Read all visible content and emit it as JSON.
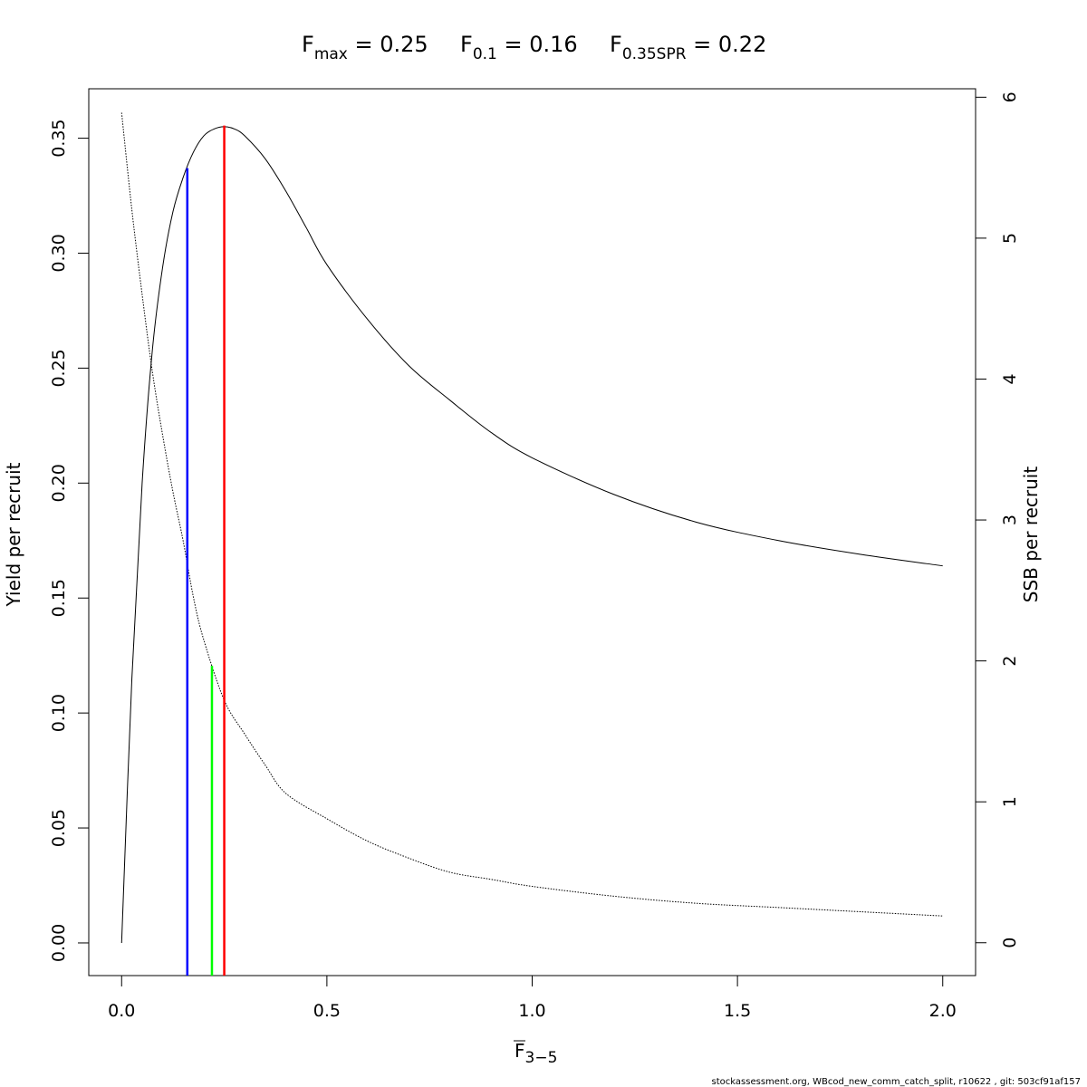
{
  "title": {
    "fmax": {
      "base": "F",
      "sub": "max",
      "text": " = 0.25"
    },
    "f01": {
      "base": "F",
      "sub": "0.1",
      "text": " = 0.16"
    },
    "fspr": {
      "base": "F",
      "sub": "0.35SPR",
      "text": " = 0.22"
    }
  },
  "footer": "stockassessment.org, WBcod_new_comm_catch_split, r10622 , git: 503cf91af157",
  "chart_data": {
    "type": "line",
    "xlabel": {
      "base": "F",
      "sub": "3−5"
    },
    "ylabel": "Yield per recruit",
    "y2label": "SSB per recruit",
    "xlim": [
      -0.08,
      2.08
    ],
    "ylim": [
      -0.0142,
      0.3715
    ],
    "y2lim": [
      -0.233,
      6.06
    ],
    "x_ticks": [
      0.0,
      0.5,
      1.0,
      1.5,
      2.0
    ],
    "x_tick_labels": [
      "0.0",
      "0.5",
      "1.0",
      "1.5",
      "2.0"
    ],
    "y_ticks": [
      0.0,
      0.05,
      0.1,
      0.15,
      0.2,
      0.25,
      0.3,
      0.35
    ],
    "y_tick_labels": [
      "0.00",
      "0.05",
      "0.10",
      "0.15",
      "0.20",
      "0.25",
      "0.30",
      "0.35"
    ],
    "y2_ticks": [
      0,
      1,
      2,
      3,
      4,
      5,
      6
    ],
    "y2_tick_labels": [
      "0",
      "1",
      "2",
      "3",
      "4",
      "5",
      "6"
    ],
    "grid": false,
    "legend": "none",
    "series": [
      {
        "axis": "left",
        "style": "solid",
        "color": "#000000",
        "x": [
          0,
          0.025,
          0.05,
          0.075,
          0.1,
          0.125,
          0.15,
          0.175,
          0.2,
          0.225,
          0.25,
          0.275,
          0.3,
          0.35,
          0.4,
          0.45,
          0.5,
          0.6,
          0.7,
          0.8,
          0.9,
          1.0,
          1.2,
          1.4,
          1.6,
          1.8,
          2.0
        ],
        "y": [
          0,
          0.115,
          0.2,
          0.258,
          0.294,
          0.318,
          0.333,
          0.344,
          0.351,
          0.354,
          0.355,
          0.354,
          0.351,
          0.341,
          0.327,
          0.311,
          0.295,
          0.271,
          0.251,
          0.236,
          0.222,
          0.211,
          0.195,
          0.183,
          0.175,
          0.169,
          0.164
        ]
      },
      {
        "axis": "right",
        "style": "dotted",
        "color": "#000000",
        "x": [
          0,
          0.025,
          0.05,
          0.075,
          0.1,
          0.125,
          0.15,
          0.175,
          0.2,
          0.25,
          0.3,
          0.35,
          0.4,
          0.5,
          0.6,
          0.7,
          0.8,
          0.9,
          1.0,
          1.2,
          1.4,
          1.6,
          1.8,
          2.0
        ],
        "y": [
          5.89,
          5.2,
          4.6,
          4.05,
          3.6,
          3.2,
          2.85,
          2.45,
          2.15,
          1.72,
          1.48,
          1.26,
          1.06,
          0.88,
          0.72,
          0.6,
          0.5,
          0.45,
          0.4,
          0.33,
          0.28,
          0.25,
          0.22,
          0.19
        ]
      }
    ],
    "reference_lines": [
      {
        "x": 0.16,
        "y_top": 0.337,
        "axis": "left",
        "color": "#0000ff"
      },
      {
        "x": 0.22,
        "y_top": 0.1205,
        "axis": "left",
        "color": "#00ff00"
      },
      {
        "x": 0.25,
        "y_top": 0.3555,
        "axis": "left",
        "color": "#ff0000"
      }
    ]
  }
}
